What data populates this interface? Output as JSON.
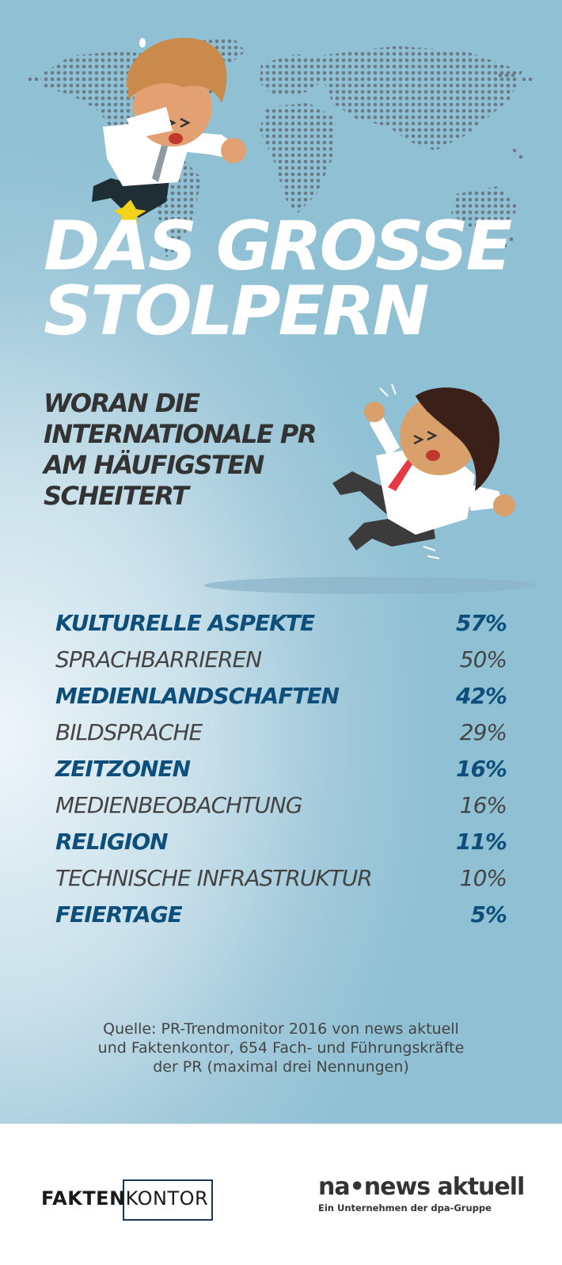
{
  "title": {
    "line1": "DAS GROSSE",
    "line2": "STOLPERN"
  },
  "subtitle": {
    "lines": [
      "WORAN DIE",
      "INTERNATIONALE PR",
      "AM HÄUFIGSTEN",
      "SCHEITERT"
    ]
  },
  "chart_data": {
    "type": "table",
    "categories": [
      "KULTURELLE ASPEKTE",
      "SPRACHBARRIEREN",
      "MEDIENLANDSCHAFTEN",
      "BILDSPRACHE",
      "ZEITZONEN",
      "MEDIENBEOBACHTUNG",
      "RELIGION",
      "TECHNISCHE INFRASTRUKTUR",
      "FEIERTAGE"
    ],
    "value_labels": [
      "57%",
      "50%",
      "42%",
      "29%",
      "16%",
      "16%",
      "11%",
      "10%",
      "5%"
    ],
    "values": [
      57,
      50,
      42,
      29,
      16,
      16,
      11,
      10,
      5
    ]
  },
  "source": {
    "lines": [
      "Quelle: PR-Trendmonitor 2016 von news aktuell",
      "und Faktenkontor, 654 Fach- und Führungskräfte",
      "der PR (maximal drei Nennungen)"
    ]
  },
  "logos": {
    "faktenkontor": {
      "part1": "FAKTEN",
      "part2": "KONTOR"
    },
    "news_aktuell": {
      "name": "na•news aktuell",
      "tagline": "Ein Unternehmen der dpa-Gruppe"
    }
  },
  "colors": {
    "highlight": "#0d4f7a",
    "text": "#444444",
    "title": "#ffffff",
    "subtitle": "#333333"
  }
}
